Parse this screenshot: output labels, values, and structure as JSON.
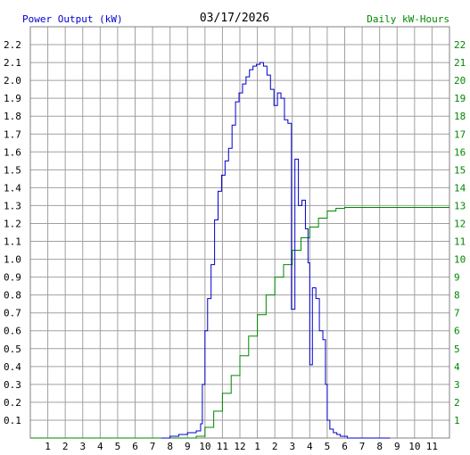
{
  "header": {
    "left_label": "Power Output (kW)",
    "date": "03/17/2026",
    "right_label": "Daily kW-Hours"
  },
  "colors": {
    "power": "#0000cc",
    "energy": "#008800",
    "grid": "#a0a0a0",
    "left_text": "#0000cc",
    "right_text": "#008800",
    "axis_text": "#000000"
  },
  "chart_data": {
    "type": "line",
    "title": "03/17/2026",
    "grid": true,
    "x_hours_range": [
      0,
      24
    ],
    "x_tick_labels": [
      "1",
      "2",
      "3",
      "4",
      "5",
      "6",
      "7",
      "8",
      "9",
      "10",
      "11",
      "12",
      "1",
      "2",
      "3",
      "4",
      "5",
      "6",
      "7",
      "8",
      "9",
      "10",
      "11"
    ],
    "y_left": {
      "label": "Power Output (kW)",
      "range": [
        0,
        2.3
      ],
      "ticks": [
        "0.1",
        "0.2",
        "0.3",
        "0.4",
        "0.5",
        "0.6",
        "0.7",
        "0.8",
        "0.9",
        "1.0",
        "1.1",
        "1.2",
        "1.3",
        "1.4",
        "1.5",
        "1.6",
        "1.7",
        "1.8",
        "1.9",
        "2.0",
        "2.1",
        "2.2"
      ]
    },
    "y_right": {
      "label": "Daily kW-Hours",
      "range": [
        0,
        23
      ],
      "ticks": [
        "1",
        "2",
        "3",
        "4",
        "5",
        "6",
        "7",
        "8",
        "9",
        "10",
        "11",
        "12",
        "13",
        "14",
        "15",
        "16",
        "17",
        "18",
        "19",
        "20",
        "21",
        "22"
      ]
    },
    "series": [
      {
        "name": "Power Output (kW)",
        "axis": "left",
        "x": [
          7.5,
          8.0,
          8.5,
          9.0,
          9.5,
          9.75,
          9.85,
          10.0,
          10.15,
          10.35,
          10.55,
          10.75,
          10.95,
          11.15,
          11.35,
          11.55,
          11.75,
          11.95,
          12.15,
          12.35,
          12.55,
          12.75,
          12.95,
          13.15,
          13.35,
          13.55,
          13.75,
          13.95,
          14.15,
          14.35,
          14.55,
          14.75,
          14.95,
          15.15,
          15.35,
          15.55,
          15.75,
          15.9,
          16.0,
          16.15,
          16.35,
          16.55,
          16.75,
          16.9,
          17.0,
          17.15,
          17.35,
          17.55,
          17.75,
          17.95,
          18.15,
          18.35,
          18.55,
          18.75,
          18.95,
          19.15,
          19.4,
          19.7,
          20.0,
          20.3,
          20.6
        ],
        "y": [
          0.0,
          0.01,
          0.02,
          0.03,
          0.04,
          0.08,
          0.3,
          0.6,
          0.78,
          0.97,
          1.22,
          1.38,
          1.47,
          1.55,
          1.62,
          1.75,
          1.88,
          1.93,
          1.98,
          2.02,
          2.06,
          2.08,
          2.09,
          2.1,
          2.08,
          2.03,
          1.95,
          1.86,
          1.93,
          1.9,
          1.78,
          1.76,
          0.72,
          1.56,
          1.3,
          1.33,
          1.17,
          0.98,
          0.41,
          0.84,
          0.78,
          0.6,
          0.55,
          0.3,
          0.1,
          0.05,
          0.03,
          0.02,
          0.01,
          0.01,
          0.0,
          0.0,
          0.0,
          0.0,
          0.0,
          0.0,
          0.0,
          0.0,
          0.0,
          0.0,
          0.0
        ]
      },
      {
        "name": "Daily kW-Hours",
        "axis": "right",
        "x": [
          0,
          9.5,
          10.0,
          10.5,
          11.0,
          11.5,
          12.0,
          12.5,
          13.0,
          13.5,
          14.0,
          14.5,
          15.0,
          15.5,
          16.0,
          16.5,
          17.0,
          17.5,
          18.0,
          18.5,
          24.0
        ],
        "y": [
          0,
          0.1,
          0.6,
          1.5,
          2.5,
          3.5,
          4.6,
          5.7,
          6.9,
          8.0,
          9.0,
          9.7,
          10.5,
          11.2,
          11.8,
          12.3,
          12.7,
          12.85,
          12.9,
          12.9,
          12.9
        ]
      }
    ]
  }
}
